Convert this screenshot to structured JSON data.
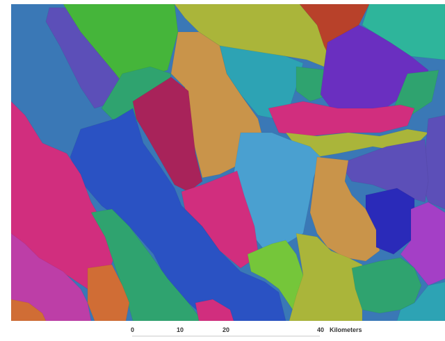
{
  "map": {
    "colors": {
      "steel_blue": "#3a78b6",
      "violet": "#5c4fb8",
      "green": "#45b53a",
      "olive": "#aab53a",
      "rust": "#b8412a",
      "teal": "#2eb59b",
      "tan": "#c9944a",
      "blue": "#2a52c3",
      "maroon": "#a8235a",
      "sea_green": "#2fa36f",
      "magenta": "#d12e7e",
      "sky_blue": "#4aa0d0",
      "purple": "#6a2fc0",
      "lime": "#75c63a",
      "orange": "#d06d35",
      "pink_magenta": "#bd3ea7",
      "cyan": "#2da3b4",
      "navy": "#2a2ab9",
      "orchid": "#a43fc6"
    }
  },
  "scale": {
    "ticks": [
      "0",
      "10",
      "20",
      "40"
    ],
    "unit": "Kilometers"
  }
}
